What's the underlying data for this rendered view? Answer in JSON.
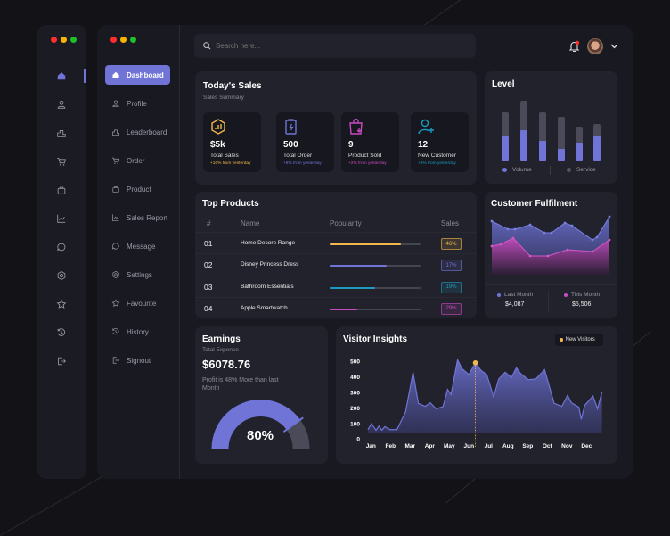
{
  "window_controls": [
    "close",
    "minimize",
    "maximize"
  ],
  "colors": {
    "accent": "#6f74d6",
    "gold": "#f2b84b",
    "teal": "#1b9bc0",
    "magenta": "#c84bc0",
    "grey": "#4a4a58",
    "red": "#ff2d2d"
  },
  "search": {
    "placeholder": "Search here..."
  },
  "header": {
    "notification_icon": "bell-icon",
    "has_notification": true,
    "avatar": "user-avatar"
  },
  "sidebar": {
    "items": [
      {
        "label": "Dashboard",
        "icon": "home-icon",
        "active": true
      },
      {
        "label": "Profile",
        "icon": "user-icon"
      },
      {
        "label": "Leaderboard",
        "icon": "leaderboard-icon"
      },
      {
        "label": "Order",
        "icon": "cart-icon"
      },
      {
        "label": "Product",
        "icon": "bag-icon"
      },
      {
        "label": "Sales Report",
        "icon": "chart-line-icon"
      },
      {
        "label": "Message",
        "icon": "message-icon"
      },
      {
        "label": "Settings",
        "icon": "gear-icon"
      },
      {
        "label": "Favourite",
        "icon": "star-icon"
      },
      {
        "label": "History",
        "icon": "history-icon"
      },
      {
        "label": "Signout",
        "icon": "signout-icon"
      }
    ]
  },
  "todays_sales": {
    "title": "Today's Sales",
    "subtitle": "Sales Summary",
    "cards": [
      {
        "value": "$5k",
        "label": "Total Sales",
        "change": "+10% from yesterday",
        "color": "#f2b84b",
        "icon": "chart-hexagon-icon"
      },
      {
        "value": "500",
        "label": "Total Order",
        "change": "+8% from yesterday",
        "color": "#6f74d6",
        "icon": "clipboard-bolt-icon"
      },
      {
        "value": "9",
        "label": "Product Sold",
        "change": "+2% from yesterday",
        "color": "#c84bc0",
        "icon": "shopping-bag-icon"
      },
      {
        "value": "12",
        "label": "New Customer",
        "change": "+3% from yesterday",
        "color": "#1b9bc0",
        "icon": "user-add-icon"
      }
    ]
  },
  "level": {
    "title": "Level",
    "legend": [
      {
        "label": "Volume",
        "color": "#6f74d6"
      },
      {
        "label": "Service",
        "color": "#55555f"
      }
    ],
    "chart_data": {
      "type": "bar",
      "stacked": true,
      "series": [
        {
          "name": "Volume",
          "values": [
            27,
            34,
            22,
            13,
            20,
            27
          ]
        },
        {
          "name": "Service",
          "values": [
            27,
            33,
            32,
            36,
            18,
            14
          ]
        }
      ]
    }
  },
  "top_products": {
    "title": "Top Products",
    "columns": [
      "#",
      "Name",
      "Popularity",
      "Sales"
    ],
    "rows": [
      {
        "num": "01",
        "name": "Home Decore Range",
        "popularity": 0.78,
        "sales": "46%",
        "color": "#f2b84b"
      },
      {
        "num": "02",
        "name": "Disney Princess Dress",
        "popularity": 0.63,
        "sales": "17%",
        "color": "#6f74d6"
      },
      {
        "num": "03",
        "name": "Bathroom Essentials",
        "popularity": 0.5,
        "sales": "19%",
        "color": "#1b9bc0"
      },
      {
        "num": "04",
        "name": "Apple Smartwatch",
        "popularity": 0.3,
        "sales": "29%",
        "color": "#c84bc0"
      }
    ]
  },
  "customer_fulfilment": {
    "title": "Customer Fulfilment",
    "legend": [
      {
        "label": "Last Month",
        "value": "$4,087",
        "color": "#6f74d6"
      },
      {
        "label": "This Month",
        "value": "$5,506",
        "color": "#c84bc0"
      }
    ],
    "chart_data": {
      "type": "area",
      "series": [
        {
          "name": "Last Month",
          "values": [
            60,
            51,
            51,
            56,
            47,
            47,
            58,
            55,
            39,
            42,
            65
          ]
        },
        {
          "name": "This Month",
          "values": [
            32,
            34,
            41,
            21,
            21,
            28,
            26,
            39
          ]
        }
      ]
    }
  },
  "earnings": {
    "title": "Earnings",
    "subtitle": "Total Expense",
    "amount": "$6078.76",
    "note": "Profit is 48% More than last Month",
    "gauge_percent": 80,
    "gauge_label": "80%"
  },
  "visitor_insights": {
    "title": "Visitor Insights",
    "legend": "New Visitors",
    "chart_data": {
      "type": "area",
      "ylim": [
        0,
        500
      ],
      "yticks": [
        "500",
        "400",
        "300",
        "200",
        "100",
        "0"
      ],
      "xticks": [
        "Jan",
        "Feb",
        "Mar",
        "Apr",
        "May",
        "Jun",
        "Jul",
        "Aug",
        "Sep",
        "Oct",
        "Nov",
        "Dec"
      ],
      "series": [
        {
          "name": "New Visitors",
          "color": "#6f74d6",
          "x": [
            -0.15,
            0.03,
            0.26,
            0.41,
            0.56,
            0.71,
            0.98,
            1.33,
            1.77,
            2.15,
            2.42,
            2.77,
            3.03,
            3.33,
            3.68,
            3.91,
            4.09,
            4.42,
            4.65,
            5.0,
            5.33,
            5.61,
            5.91,
            6.26,
            6.52,
            6.85,
            7.17,
            7.42,
            7.65,
            8.03,
            8.41,
            8.86,
            9.35,
            9.74,
            10.03,
            10.23,
            10.61,
            10.73,
            10.91,
            11.33,
            11.56,
            11.79
          ],
          "y": [
            63,
            102,
            59,
            86,
            59,
            82,
            63,
            63,
            178,
            433,
            232,
            213,
            236,
            197,
            211,
            322,
            289,
            513,
            456,
            418,
            494,
            446,
            418,
            274,
            389,
            433,
            399,
            462,
            423,
            385,
            389,
            450,
            232,
            213,
            284,
            236,
            207,
            130,
            220,
            280,
            197,
            308
          ]
        }
      ],
      "highlight": {
        "x": 5.33,
        "y": 494,
        "color": "#f2b84b"
      }
    }
  }
}
